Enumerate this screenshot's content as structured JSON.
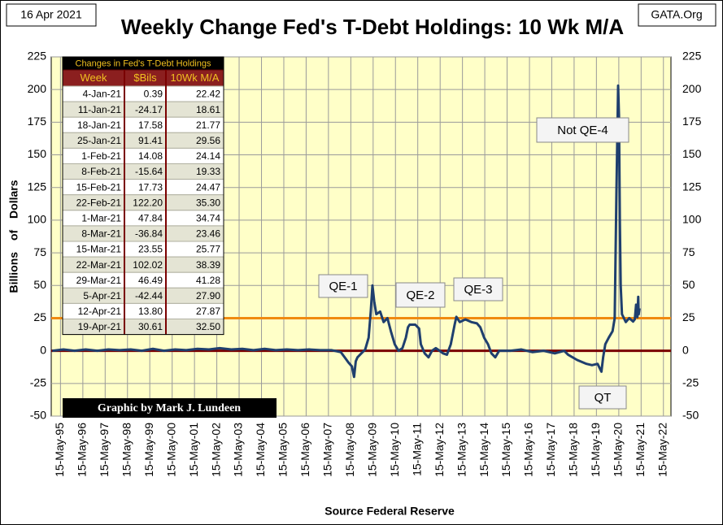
{
  "chart_data": {
    "type": "line",
    "title": "Weekly Change Fed's T-Debt Holdings: 10 Wk M/A",
    "date_label": "16 Apr 2021",
    "source_site": "GATA.Org",
    "y_label": "Billions of Dollars",
    "x_label": "Source Federal Reserve",
    "credit": "Graphic by Mark J. Lundeen",
    "annotations": [
      "QE-1",
      "QE-2",
      "QE-3",
      "Not QE-4",
      "QT"
    ],
    "grid": true,
    "plot_background": "#ffffc8",
    "reference_lines": [
      {
        "value": 25,
        "color": "#f08a10"
      },
      {
        "value": 0,
        "color": "#7a0000"
      }
    ],
    "xlim": [
      "1994-12-15",
      "2022-09-15"
    ],
    "xticks": [
      {
        "value": "1995-05-15",
        "label": "15-May-95"
      },
      {
        "value": "1996-05-15",
        "label": "15-May-96"
      },
      {
        "value": "1997-05-15",
        "label": "15-May-97"
      },
      {
        "value": "1998-05-15",
        "label": "15-May-98"
      },
      {
        "value": "1999-05-15",
        "label": "15-May-99"
      },
      {
        "value": "2000-05-15",
        "label": "15-May-00"
      },
      {
        "value": "2001-05-15",
        "label": "15-May-01"
      },
      {
        "value": "2002-05-15",
        "label": "15-May-02"
      },
      {
        "value": "2003-05-15",
        "label": "15-May-03"
      },
      {
        "value": "2004-05-15",
        "label": "15-May-04"
      },
      {
        "value": "2005-05-15",
        "label": "15-May-05"
      },
      {
        "value": "2006-05-15",
        "label": "15-May-06"
      },
      {
        "value": "2007-05-15",
        "label": "15-May-07"
      },
      {
        "value": "2008-05-15",
        "label": "15-May-08"
      },
      {
        "value": "2009-05-15",
        "label": "15-May-09"
      },
      {
        "value": "2010-05-15",
        "label": "15-May-10"
      },
      {
        "value": "2011-05-15",
        "label": "15-May-11"
      },
      {
        "value": "2012-05-15",
        "label": "15-May-12"
      },
      {
        "value": "2013-05-15",
        "label": "15-May-13"
      },
      {
        "value": "2014-05-15",
        "label": "15-May-14"
      },
      {
        "value": "2015-05-15",
        "label": "15-May-15"
      },
      {
        "value": "2016-05-15",
        "label": "15-May-16"
      },
      {
        "value": "2017-05-15",
        "label": "15-May-17"
      },
      {
        "value": "2018-05-15",
        "label": "15-May-18"
      },
      {
        "value": "2019-05-15",
        "label": "15-May-19"
      },
      {
        "value": "2020-05-15",
        "label": "15-May-20"
      },
      {
        "value": "2021-05-15",
        "label": "15-May-21"
      },
      {
        "value": "2022-05-15",
        "label": "15-May-22"
      }
    ],
    "ylim": [
      -50,
      225
    ],
    "yticks": [
      -50,
      -25,
      0,
      25,
      50,
      75,
      100,
      125,
      150,
      175,
      200,
      225
    ],
    "x": [
      "1995-01-02",
      "1995-07-03",
      "1996-01-01",
      "1996-07-01",
      "1997-01-06",
      "1997-07-07",
      "1998-01-05",
      "1998-07-06",
      "1999-01-04",
      "1999-07-05",
      "2000-01-03",
      "2000-07-03",
      "2001-01-01",
      "2001-07-02",
      "2002-01-07",
      "2002-07-01",
      "2003-01-06",
      "2003-07-07",
      "2004-01-05",
      "2004-07-05",
      "2005-01-03",
      "2005-07-04",
      "2006-01-02",
      "2006-07-03",
      "2007-01-01",
      "2007-07-02",
      "2007-12-03",
      "2008-02-04",
      "2008-04-07",
      "2008-06-02",
      "2008-07-07",
      "2008-08-04",
      "2008-09-01",
      "2008-11-03",
      "2009-01-05",
      "2009-03-02",
      "2009-04-06",
      "2009-05-04",
      "2009-06-01",
      "2009-07-06",
      "2009-09-07",
      "2009-11-02",
      "2010-01-04",
      "2010-03-01",
      "2010-05-03",
      "2010-07-05",
      "2010-09-06",
      "2010-11-01",
      "2010-12-06",
      "2011-01-03",
      "2011-04-04",
      "2011-06-06",
      "2011-07-04",
      "2011-09-05",
      "2011-11-07",
      "2012-01-02",
      "2012-03-05",
      "2012-05-07",
      "2012-07-02",
      "2012-09-03",
      "2012-11-05",
      "2013-01-07",
      "2013-02-04",
      "2013-04-01",
      "2013-07-01",
      "2013-10-07",
      "2014-01-06",
      "2014-03-03",
      "2014-05-05",
      "2014-07-07",
      "2014-09-01",
      "2014-11-03",
      "2015-01-05",
      "2015-07-06",
      "2016-01-04",
      "2016-07-04",
      "2017-01-02",
      "2017-07-03",
      "2017-12-04",
      "2018-02-05",
      "2018-07-02",
      "2018-12-03",
      "2019-03-04",
      "2019-06-03",
      "2019-08-05",
      "2019-09-02",
      "2019-10-07",
      "2019-12-02",
      "2020-02-03",
      "2020-03-09",
      "2020-04-06",
      "2020-05-04",
      "2020-05-18",
      "2020-06-01",
      "2020-06-15",
      "2020-07-06",
      "2020-09-07",
      "2020-11-02",
      "2021-01-04",
      "2021-02-01",
      "2021-02-22",
      "2021-03-15",
      "2021-03-29",
      "2021-04-05",
      "2021-04-19"
    ],
    "series": [
      {
        "name": "10 Wk M/A",
        "color": "#1f3f6e",
        "values": [
          0,
          1,
          0,
          1,
          0,
          1,
          0.5,
          1,
          0,
          1.5,
          0,
          1,
          0.5,
          1.5,
          1,
          2,
          1,
          1.5,
          0.5,
          1.5,
          0.5,
          1,
          0.5,
          1,
          0.5,
          0.5,
          -1,
          -5,
          -9,
          -12,
          -20,
          -8,
          -5,
          -2,
          1,
          10,
          30,
          50,
          38,
          28,
          30,
          22,
          25,
          15,
          5,
          0,
          2,
          10,
          18,
          20,
          20,
          17,
          5,
          -2,
          -5,
          0,
          2,
          0,
          -2,
          -3,
          5,
          20,
          26,
          22,
          24,
          22,
          21,
          18,
          10,
          5,
          -2,
          -5,
          0,
          0,
          1,
          -1,
          0,
          -2,
          0,
          -3,
          -7,
          -10,
          -11,
          -10,
          -16,
          -5,
          5,
          10,
          15,
          25,
          120,
          203,
          180,
          100,
          50,
          28,
          22,
          25,
          22.42,
          24.14,
          35.3,
          25.77,
          41.28,
          27.9,
          32.5
        ]
      }
    ],
    "table": {
      "title": "Changes in Fed's T-Debt Holdings",
      "columns": [
        "Week",
        "$Bils",
        "10Wk M/A"
      ],
      "rows": [
        [
          "4-Jan-21",
          "0.39",
          "22.42"
        ],
        [
          "11-Jan-21",
          "-24.17",
          "18.61"
        ],
        [
          "18-Jan-21",
          "17.58",
          "21.77"
        ],
        [
          "25-Jan-21",
          "91.41",
          "29.56"
        ],
        [
          "1-Feb-21",
          "14.08",
          "24.14"
        ],
        [
          "8-Feb-21",
          "-15.64",
          "19.33"
        ],
        [
          "15-Feb-21",
          "17.73",
          "24.47"
        ],
        [
          "22-Feb-21",
          "122.20",
          "35.30"
        ],
        [
          "1-Mar-21",
          "47.84",
          "34.74"
        ],
        [
          "8-Mar-21",
          "-36.84",
          "23.46"
        ],
        [
          "15-Mar-21",
          "23.55",
          "25.77"
        ],
        [
          "22-Mar-21",
          "102.02",
          "38.39"
        ],
        [
          "29-Mar-21",
          "46.49",
          "41.28"
        ],
        [
          "5-Apr-21",
          "-42.44",
          "27.90"
        ],
        [
          "12-Apr-21",
          "13.80",
          "27.87"
        ],
        [
          "19-Apr-21",
          "30.61",
          "32.50"
        ]
      ]
    }
  }
}
